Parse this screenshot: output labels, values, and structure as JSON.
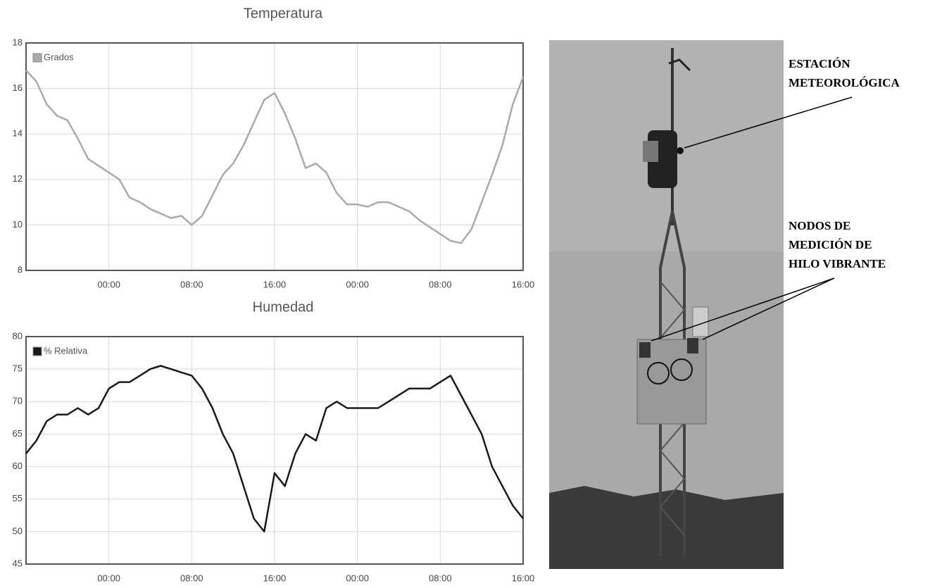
{
  "chart_data": [
    {
      "type": "line",
      "title": "Temperatura",
      "x": [
        0,
        1,
        2,
        3,
        4,
        5,
        6,
        7,
        8,
        9,
        10,
        11,
        12,
        13,
        14,
        15,
        16,
        17,
        18,
        19,
        20,
        21,
        22,
        23,
        24,
        25,
        26,
        27,
        28,
        29,
        30,
        31,
        32,
        33,
        34,
        35,
        36,
        37,
        38,
        39,
        40,
        41,
        42,
        43,
        44,
        45,
        46,
        47,
        48
      ],
      "series": [
        {
          "name": "Grados",
          "color": "#aaaaaa",
          "values": [
            16.8,
            16.3,
            15.3,
            14.8,
            14.6,
            13.8,
            12.9,
            12.6,
            12.3,
            12.0,
            11.2,
            11.0,
            10.7,
            10.5,
            10.3,
            10.4,
            10.0,
            10.4,
            11.3,
            12.2,
            12.7,
            13.5,
            14.5,
            15.5,
            15.8,
            14.9,
            13.8,
            12.5,
            12.7,
            12.3,
            11.4,
            10.9,
            10.9,
            10.8,
            11.0,
            11.0,
            10.8,
            10.6,
            10.2,
            9.9,
            9.6,
            9.3,
            9.2,
            9.8,
            11.0,
            12.2,
            13.5,
            15.3,
            16.5
          ]
        }
      ],
      "xlim": [
        0,
        48
      ],
      "xticks": [
        {
          "value": 8,
          "label": "00:00"
        },
        {
          "value": 16,
          "label": "08:00"
        },
        {
          "value": 24,
          "label": "16:00"
        },
        {
          "value": 32,
          "label": "00:00"
        },
        {
          "value": 40,
          "label": "08:00"
        },
        {
          "value": 48,
          "label": "16:00"
        }
      ],
      "ylim": [
        8,
        18
      ],
      "yticks": [
        8,
        10,
        12,
        14,
        16,
        18
      ],
      "grid": true,
      "legend": "top-left"
    },
    {
      "type": "line",
      "title": "Humedad",
      "x": [
        0,
        1,
        2,
        3,
        4,
        5,
        6,
        7,
        8,
        9,
        10,
        11,
        12,
        13,
        14,
        15,
        16,
        17,
        18,
        19,
        20,
        21,
        22,
        23,
        24,
        25,
        26,
        27,
        28,
        29,
        30,
        31,
        32,
        33,
        34,
        35,
        36,
        37,
        38,
        39,
        40,
        41,
        42,
        43,
        44,
        45,
        46,
        47,
        48
      ],
      "series": [
        {
          "name": "% Relativa",
          "color": "#1a1a1a",
          "values": [
            62,
            64,
            67,
            68,
            68,
            69,
            68,
            69,
            72,
            73,
            73,
            74,
            75,
            75.5,
            75,
            74.5,
            74,
            72,
            69,
            65,
            62,
            57,
            52,
            50,
            59,
            57,
            62,
            65,
            64,
            69,
            70,
            69,
            69,
            69,
            69,
            70,
            71,
            72,
            72,
            72,
            73,
            74,
            71,
            68,
            65,
            60,
            57,
            54,
            52
          ]
        }
      ],
      "xlim": [
        0,
        48
      ],
      "xticks": [
        {
          "value": 8,
          "label": "00:00"
        },
        {
          "value": 16,
          "label": "08:00"
        },
        {
          "value": 24,
          "label": "16:00"
        },
        {
          "value": 32,
          "label": "00:00"
        },
        {
          "value": 40,
          "label": "08:00"
        },
        {
          "value": 48,
          "label": "16:00"
        }
      ],
      "ylim": [
        45,
        80
      ],
      "yticks": [
        45,
        50,
        55,
        60,
        65,
        70,
        75,
        80
      ],
      "grid": true,
      "legend": "top-left"
    }
  ],
  "photo": {
    "labels": [
      [
        "ESTACIÓN",
        "METEOROLÓGICA"
      ],
      [
        "NODOS DE",
        "MEDICIÓN DE",
        "HILO VIBRANTE"
      ]
    ]
  }
}
